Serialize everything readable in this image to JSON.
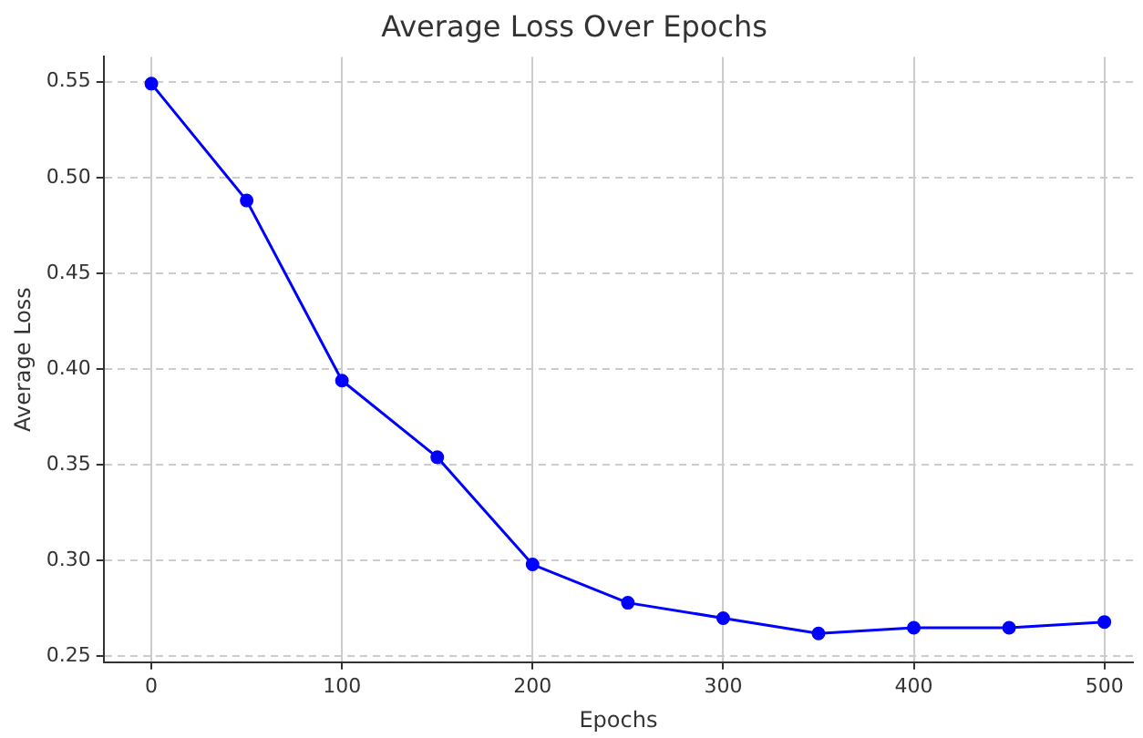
{
  "chart_data": {
    "type": "line",
    "title": "Average Loss Over Epochs",
    "xlabel": "Epochs",
    "ylabel": "Average Loss",
    "x": [
      0,
      50,
      100,
      150,
      200,
      250,
      300,
      350,
      400,
      450,
      500
    ],
    "series": [
      {
        "color": "#0000ff",
        "values": [
          0.549,
          0.488,
          0.394,
          0.354,
          0.298,
          0.278,
          0.27,
          0.262,
          0.265,
          0.265,
          0.268
        ]
      }
    ],
    "xlim": [
      -25,
      515
    ],
    "xticks": [
      0,
      100,
      200,
      300,
      400,
      500
    ],
    "ylim": [
      0.247,
      0.563
    ],
    "yticks": [
      {
        "value": 0.25,
        "label": "0.25"
      },
      {
        "value": 0.3,
        "label": "0.30"
      },
      {
        "value": 0.35,
        "label": "0.35"
      },
      {
        "value": 0.4,
        "label": "0.40"
      },
      {
        "value": 0.45,
        "label": "0.45"
      },
      {
        "value": 0.5,
        "label": "0.50"
      },
      {
        "value": 0.55,
        "label": "0.55"
      }
    ],
    "grid": true,
    "marker": "circle",
    "line_style": "solid",
    "legend": false
  }
}
